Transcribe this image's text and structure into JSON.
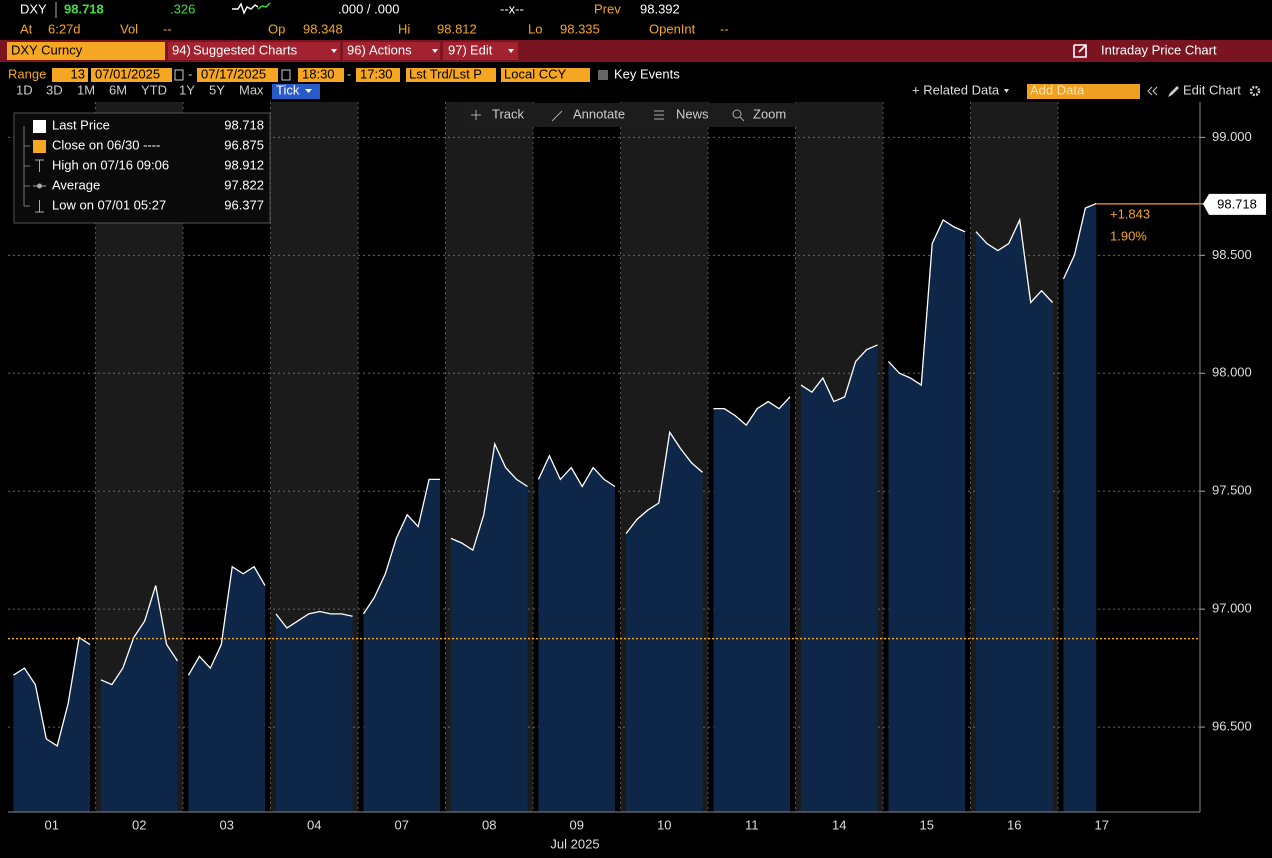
{
  "header": {
    "ticker": "DXY",
    "last": "98.718",
    "change": ".326",
    "bid_ask": ".000 / .000",
    "size": "--x--",
    "prev_label": "Prev",
    "prev": "98.392",
    "fields": [
      {
        "label": "At",
        "value": "6:27d"
      },
      {
        "label": "Vol",
        "value": "--"
      },
      {
        "label": "Op",
        "value": "98.348"
      },
      {
        "label": "Hi",
        "value": "98.812"
      },
      {
        "label": "Lo",
        "value": "98.335"
      },
      {
        "label": "OpenInt",
        "value": "--"
      }
    ]
  },
  "toolbar": {
    "security": "DXY Curncy",
    "menus": [
      {
        "code": "94)",
        "label": "Suggested Charts"
      },
      {
        "code": "96)",
        "label": "Actions"
      },
      {
        "code": "97)",
        "label": "Edit"
      }
    ],
    "title": "Intraday Price Chart"
  },
  "range_bar": {
    "label": "Range",
    "count": "13",
    "start_date": "07/01/2025",
    "separator": "-",
    "end_date": "07/17/2025",
    "start_time": "18:30",
    "end_time": "17:30",
    "price_type": "Lst Trd/Lst P",
    "currency": "Local CCY",
    "key_events": "Key Events"
  },
  "period_buttons": [
    "1D",
    "3D",
    "1M",
    "6M",
    "YTD",
    "1Y",
    "5Y",
    "Max",
    "Tick"
  ],
  "right_tools": {
    "related": "+ Related Data",
    "add_data": "Add Data",
    "edit_chart": "Edit Chart"
  },
  "chart_tools": [
    "Track",
    "Annotate",
    "News",
    "Zoom"
  ],
  "chart_data": {
    "type": "line",
    "categories": [
      "01",
      "02",
      "03",
      "04",
      "07",
      "08",
      "09",
      "10",
      "11",
      "14",
      "15",
      "16",
      "17"
    ],
    "xlabel": "Jul 2025",
    "ylim": [
      96.14,
      99.15
    ],
    "yticks": [
      {
        "value": 96.5,
        "label": "96.500"
      },
      {
        "value": 97,
        "label": "97.000"
      },
      {
        "value": 97.5,
        "label": "97.500"
      },
      {
        "value": 98,
        "label": "98.000"
      },
      {
        "value": 98.5,
        "label": "98.500"
      },
      {
        "value": 99,
        "label": "99.000"
      }
    ],
    "grid": true,
    "accent": "#f5a623",
    "series": [
      {
        "color": "#ffffff",
        "fill": "#0e2748",
        "values": [
          [
            96.72,
            96.75,
            96.68,
            96.45,
            96.42,
            96.6,
            96.88,
            96.85
          ],
          [
            96.7,
            96.68,
            96.75,
            96.88,
            96.95,
            97.1,
            96.85,
            96.78
          ],
          [
            96.72,
            96.8,
            96.75,
            96.85,
            97.18,
            97.15,
            97.18,
            97.1
          ],
          [
            96.98,
            96.92,
            96.95,
            96.98,
            96.99,
            96.98,
            96.98,
            96.97
          ],
          [
            96.98,
            97.05,
            97.15,
            97.3,
            97.4,
            97.35,
            97.55,
            97.55
          ],
          [
            97.3,
            97.28,
            97.25,
            97.4,
            97.7,
            97.6,
            97.55,
            97.52
          ],
          [
            97.55,
            97.65,
            97.55,
            97.6,
            97.52,
            97.6,
            97.55,
            97.52
          ],
          [
            97.32,
            97.38,
            97.42,
            97.45,
            97.75,
            97.68,
            97.62,
            97.58
          ],
          [
            97.85,
            97.85,
            97.82,
            97.78,
            97.85,
            97.88,
            97.85,
            97.9
          ],
          [
            97.95,
            97.92,
            97.98,
            97.88,
            97.9,
            98.05,
            98.1,
            98.12
          ],
          [
            98.05,
            98.0,
            97.98,
            97.95,
            98.55,
            98.65,
            98.62,
            98.6
          ],
          [
            98.6,
            98.55,
            98.52,
            98.55,
            98.65,
            98.3,
            98.35,
            98.3
          ],
          [
            98.4,
            98.5,
            98.7,
            98.72
          ]
        ]
      }
    ],
    "legend": [
      {
        "label": "Last Price",
        "value": 98.718
      },
      {
        "label": "Close on 06/30 ----",
        "value": 96.875
      },
      {
        "label": "High on 07/16 09:06",
        "value": 98.912
      },
      {
        "label": "Average",
        "value": 97.822
      },
      {
        "label": "Low on 07/01 05:27",
        "value": 96.377
      }
    ],
    "change": "+1.843",
    "change_pct": "1.90%"
  }
}
